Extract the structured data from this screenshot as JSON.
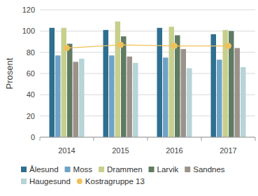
{
  "chart_data": {
    "type": "bar",
    "y_label": "Prosent",
    "categories": [
      "2014",
      "2015",
      "2016",
      "2017"
    ],
    "ylim": [
      0,
      120
    ],
    "yticks": [
      0,
      20,
      40,
      60,
      80,
      100,
      120
    ],
    "grid": true,
    "legend": "bottom",
    "series": [
      {
        "name": "Ålesund",
        "color": "#2f6f8f",
        "values": [
          103,
          101,
          103,
          97
        ]
      },
      {
        "name": "Moss",
        "color": "#6ea3c6",
        "values": [
          77,
          77,
          75,
          73
        ]
      },
      {
        "name": "Drammen",
        "color": "#c7cf8d",
        "values": [
          103,
          109,
          104,
          101
        ]
      },
      {
        "name": "Larvik",
        "color": "#5f7b62",
        "values": [
          88,
          95,
          96,
          100
        ]
      },
      {
        "name": "Sandnes",
        "color": "#9b928a",
        "values": [
          71,
          76,
          83,
          84
        ]
      },
      {
        "name": "Haugesund",
        "color": "#b7d4d7",
        "values": [
          74,
          70,
          65,
          66
        ]
      },
      {
        "name": "Kostragruppe 13",
        "color": "#f0c05a",
        "type": "line",
        "marker": "circle",
        "values": [
          84,
          87,
          86,
          86
        ]
      }
    ]
  }
}
